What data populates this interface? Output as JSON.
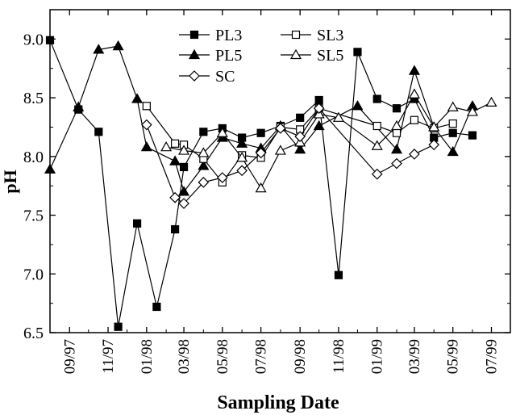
{
  "chart_data": {
    "type": "line",
    "title": "",
    "xlabel": "Sampling Date",
    "ylabel": "pH",
    "ylim": [
      6.5,
      9.25
    ],
    "xlim": [
      "1997-08-01",
      "1999-07-31"
    ],
    "grid": false,
    "legend_position": "top-center",
    "x_tick_labels": [
      {
        "label": "09/97",
        "date": "1997-09-01"
      },
      {
        "label": "11/97",
        "date": "1997-11-01"
      },
      {
        "label": "01/98",
        "date": "1998-01-01"
      },
      {
        "label": "03/98",
        "date": "1998-03-01"
      },
      {
        "label": "05/98",
        "date": "1998-05-01"
      },
      {
        "label": "07/98",
        "date": "1998-07-01"
      },
      {
        "label": "09/98",
        "date": "1998-09-01"
      },
      {
        "label": "11/98",
        "date": "1998-11-01"
      },
      {
        "label": "01/99",
        "date": "1999-01-01"
      },
      {
        "label": "03/99",
        "date": "1999-03-01"
      },
      {
        "label": "05/99",
        "date": "1999-05-01"
      },
      {
        "label": "07/99",
        "date": "1999-07-01"
      }
    ],
    "y_ticks": [
      6.5,
      7.0,
      7.5,
      8.0,
      8.5,
      9.0
    ],
    "y_tick_labels": [
      "6.5",
      "7.0",
      "7.5",
      "8.0",
      "8.5",
      "9.0"
    ],
    "series": [
      {
        "name": "PL3",
        "marker": "square",
        "filled": true,
        "points": [
          {
            "date": "1997-08-01",
            "y": 8.99
          },
          {
            "date": "1997-09-15",
            "y": 8.4
          },
          {
            "date": "1997-10-17",
            "y": 8.21
          },
          {
            "date": "1997-11-17",
            "y": 6.55
          },
          {
            "date": "1997-12-17",
            "y": 7.43
          },
          {
            "date": "1998-01-17",
            "y": 6.72
          },
          {
            "date": "1998-02-15",
            "y": 7.38
          },
          {
            "date": "1998-03-01",
            "y": 7.91
          },
          {
            "date": "1998-04-01",
            "y": 8.21
          },
          {
            "date": "1998-05-01",
            "y": 8.24
          },
          {
            "date": "1998-06-01",
            "y": 8.16
          },
          {
            "date": "1998-07-01",
            "y": 8.2
          },
          {
            "date": "1998-08-01",
            "y": 8.26
          },
          {
            "date": "1998-09-01",
            "y": 8.33
          },
          {
            "date": "1998-10-01",
            "y": 8.48
          },
          {
            "date": "1998-11-01",
            "y": 6.99
          },
          {
            "date": "1998-12-01",
            "y": 8.89
          },
          {
            "date": "1999-01-01",
            "y": 8.49
          },
          {
            "date": "1999-02-01",
            "y": 8.41
          },
          {
            "date": "1999-03-01",
            "y": 8.49
          },
          {
            "date": "1999-04-01",
            "y": 8.16
          },
          {
            "date": "1999-05-01",
            "y": 8.2
          },
          {
            "date": "1999-06-01",
            "y": 8.18
          }
        ]
      },
      {
        "name": "PL5",
        "marker": "triangle",
        "filled": true,
        "points": [
          {
            "date": "1997-08-01",
            "y": 7.89
          },
          {
            "date": "1997-09-15",
            "y": 8.42
          },
          {
            "date": "1997-10-17",
            "y": 8.91
          },
          {
            "date": "1997-11-17",
            "y": 8.94
          },
          {
            "date": "1997-12-17",
            "y": 8.49
          },
          {
            "date": "1998-01-01",
            "y": 8.08
          },
          {
            "date": "1998-02-15",
            "y": 7.96
          },
          {
            "date": "1998-03-01",
            "y": 7.7
          },
          {
            "date": "1998-04-01",
            "y": 7.92
          },
          {
            "date": "1998-05-01",
            "y": 8.16
          },
          {
            "date": "1998-06-01",
            "y": 8.11
          },
          {
            "date": "1998-07-01",
            "y": 8.07
          },
          {
            "date": "1998-08-01",
            "y": 8.26
          },
          {
            "date": "1998-09-01",
            "y": 8.06
          },
          {
            "date": "1998-10-01",
            "y": 8.26
          },
          {
            "date": "1998-12-01",
            "y": 8.43
          },
          {
            "date": "1999-02-01",
            "y": 8.06
          },
          {
            "date": "1999-03-01",
            "y": 8.73
          },
          {
            "date": "1999-04-01",
            "y": 8.25
          },
          {
            "date": "1999-05-01",
            "y": 8.04
          },
          {
            "date": "1999-06-01",
            "y": 8.43
          }
        ]
      },
      {
        "name": "SL3",
        "marker": "square",
        "filled": false,
        "points": [
          {
            "date": "1998-01-01",
            "y": 8.43
          },
          {
            "date": "1998-02-15",
            "y": 8.11
          },
          {
            "date": "1998-03-01",
            "y": 8.1
          },
          {
            "date": "1998-04-01",
            "y": 7.98
          },
          {
            "date": "1998-05-01",
            "y": 7.78
          },
          {
            "date": "1998-06-01",
            "y": 8.01
          },
          {
            "date": "1998-07-01",
            "y": 7.99
          },
          {
            "date": "1998-08-01",
            "y": 8.25
          },
          {
            "date": "1998-09-01",
            "y": 8.23
          },
          {
            "date": "1998-10-01",
            "y": 8.41
          },
          {
            "date": "1999-01-01",
            "y": 8.26
          },
          {
            "date": "1999-02-01",
            "y": 8.2
          },
          {
            "date": "1999-03-01",
            "y": 8.31
          },
          {
            "date": "1999-04-01",
            "y": 8.24
          },
          {
            "date": "1999-05-01",
            "y": 8.28
          }
        ]
      },
      {
        "name": "SL5",
        "marker": "triangle",
        "filled": false,
        "points": [
          {
            "date": "1998-02-01",
            "y": 8.08
          },
          {
            "date": "1998-03-01",
            "y": 8.05
          },
          {
            "date": "1998-04-01",
            "y": 8.03
          },
          {
            "date": "1998-05-01",
            "y": 8.2
          },
          {
            "date": "1998-06-01",
            "y": 7.99
          },
          {
            "date": "1998-07-01",
            "y": 7.73
          },
          {
            "date": "1998-08-01",
            "y": 8.05
          },
          {
            "date": "1998-09-01",
            "y": 8.12
          },
          {
            "date": "1998-10-01",
            "y": 8.36
          },
          {
            "date": "1998-11-01",
            "y": 8.33
          },
          {
            "date": "1999-01-01",
            "y": 8.09
          },
          {
            "date": "1999-02-01",
            "y": 8.26
          },
          {
            "date": "1999-03-01",
            "y": 8.53
          },
          {
            "date": "1999-04-01",
            "y": 8.25
          },
          {
            "date": "1999-05-01",
            "y": 8.42
          },
          {
            "date": "1999-06-01",
            "y": 8.38
          },
          {
            "date": "1999-07-01",
            "y": 8.46
          }
        ]
      },
      {
        "name": "SC",
        "marker": "diamond",
        "filled": false,
        "points": [
          {
            "date": "1998-01-01",
            "y": 8.27
          },
          {
            "date": "1998-02-15",
            "y": 7.65
          },
          {
            "date": "1998-03-01",
            "y": 7.6
          },
          {
            "date": "1998-04-01",
            "y": 7.78
          },
          {
            "date": "1998-05-01",
            "y": 7.82
          },
          {
            "date": "1998-06-01",
            "y": 7.88
          },
          {
            "date": "1998-07-01",
            "y": 8.03
          },
          {
            "date": "1998-08-01",
            "y": 8.24
          },
          {
            "date": "1998-09-01",
            "y": 8.17
          },
          {
            "date": "1998-10-01",
            "y": 8.41
          },
          {
            "date": "1999-01-01",
            "y": 7.85
          },
          {
            "date": "1999-02-01",
            "y": 7.94
          },
          {
            "date": "1999-03-01",
            "y": 8.02
          },
          {
            "date": "1999-04-01",
            "y": 8.1
          }
        ]
      }
    ]
  }
}
